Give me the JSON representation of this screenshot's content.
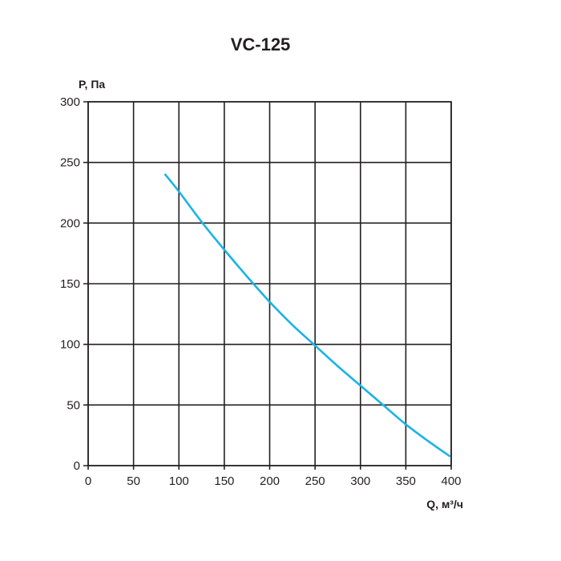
{
  "chart_data": {
    "type": "line",
    "title": "VC-125",
    "xlabel": "Q, м³/ч",
    "ylabel": "P, Па",
    "xlim": [
      0,
      400
    ],
    "ylim": [
      0,
      300
    ],
    "x_ticks": [
      "0",
      "50",
      "100",
      "150",
      "200",
      "250",
      "300",
      "350",
      "400"
    ],
    "y_ticks": [
      "0",
      "50",
      "100",
      "150",
      "200",
      "250",
      "300"
    ],
    "grid": true,
    "series": [
      {
        "color": "#1ab3e6",
        "x": [
          85,
          100,
          125,
          150,
          175,
          200,
          225,
          250,
          275,
          300,
          325,
          350,
          375,
          398
        ],
        "y": [
          240,
          226,
          201,
          178,
          156,
          135,
          116,
          99,
          82,
          66,
          50,
          34,
          20,
          8
        ]
      }
    ]
  }
}
